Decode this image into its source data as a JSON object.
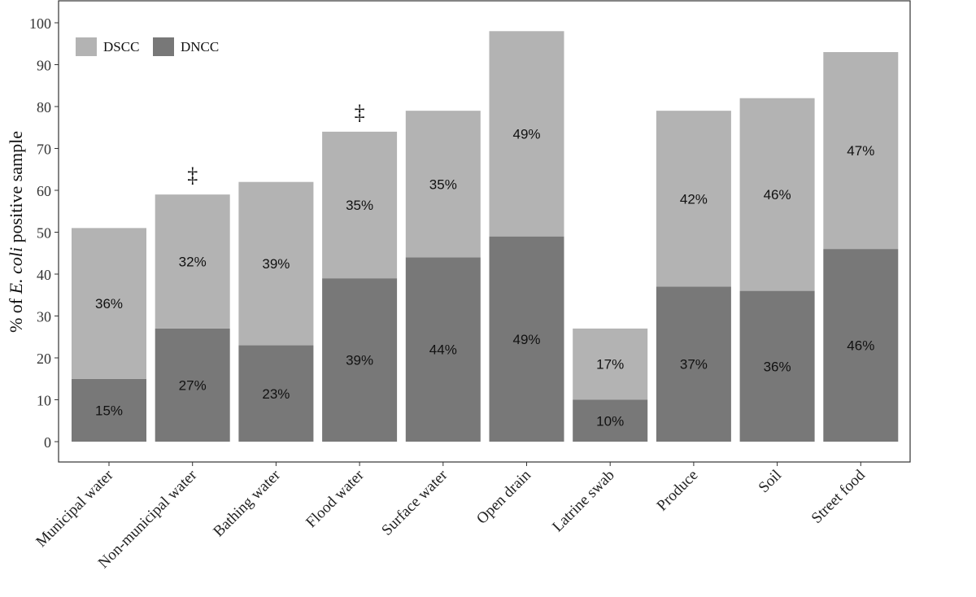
{
  "chart_data": {
    "type": "bar",
    "stacked": true,
    "categories": [
      "Municipal water",
      "Non-municipal water",
      "Bathing water",
      "Flood water",
      "Surface water",
      "Open drain",
      "Latrine swab",
      "Produce",
      "Soil",
      "Street food"
    ],
    "series": [
      {
        "name": "DNCC",
        "values": [
          15,
          27,
          23,
          39,
          44,
          49,
          10,
          37,
          36,
          46
        ],
        "labels": [
          "15%",
          "27%",
          "23%",
          "39%",
          "44%",
          "49%",
          "10%",
          "37%",
          "36%",
          "46%"
        ],
        "color": "#787878"
      },
      {
        "name": "DSCC",
        "values": [
          36,
          32,
          39,
          35,
          35,
          49,
          17,
          42,
          46,
          47
        ],
        "labels": [
          "36%",
          "32%",
          "39%",
          "35%",
          "35%",
          "49%",
          "17%",
          "42%",
          "46%",
          "47%"
        ],
        "color": "#b3b3b3"
      }
    ],
    "annotations": [
      {
        "category": "Non-municipal water",
        "text": "‡"
      },
      {
        "category": "Flood water",
        "text": "‡"
      }
    ],
    "ylabel_prefix": "% of ",
    "ylabel_italic": "E. coli",
    "ylabel_suffix": " positive sample",
    "ylim": [
      0,
      100
    ],
    "yticks": [
      0,
      10,
      20,
      30,
      40,
      50,
      60,
      70,
      80,
      90,
      100
    ],
    "grid": false,
    "legend_position": "top-left"
  }
}
